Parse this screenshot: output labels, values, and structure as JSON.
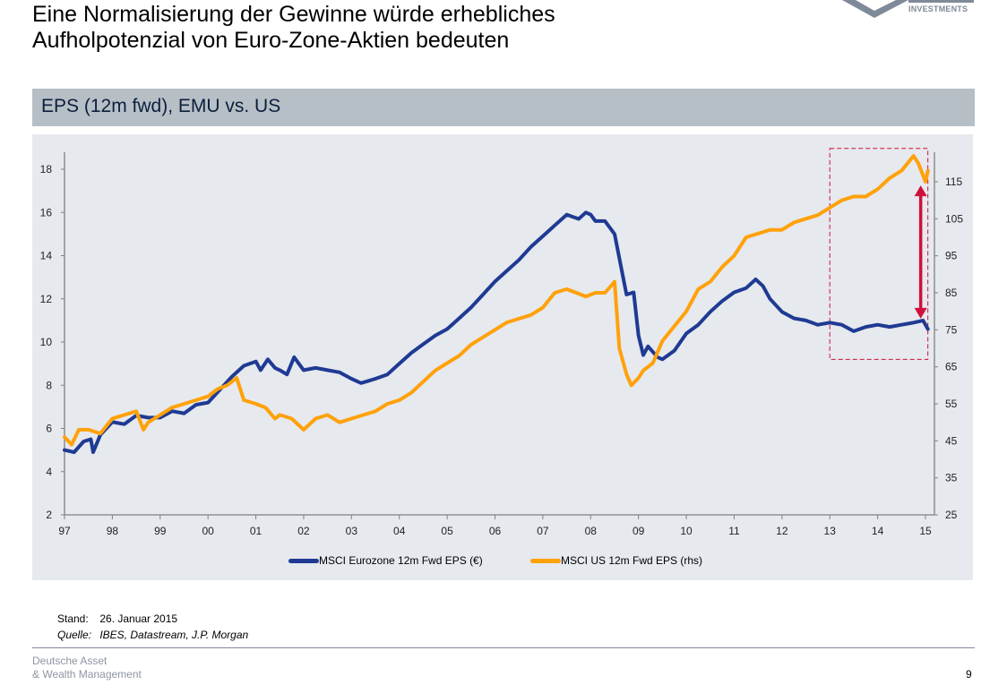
{
  "page": {
    "title_line1": "Eine Normalisierung der Gewinne würde erhebliches",
    "title_line2": "Aufholpotenzial von Euro-Zone-Aktien bedeuten",
    "logo_text": "INVESTMENTS",
    "section_header": "EPS (12m fwd), EMU vs. US",
    "stand_label": "Stand:",
    "stand_value": "26. Januar 2015",
    "quelle_label": "Quelle:",
    "quelle_value": "IBES, Datastream, J.P. Morgan",
    "brand_line1": "Deutsche Asset",
    "brand_line2": "& Wealth Management",
    "page_number": "9"
  },
  "colors": {
    "eurozone": "#1f3a93",
    "us": "#ffa10a",
    "highlight": "#d0103a",
    "panel": "#e6e9ee",
    "header": "#b7bfc6"
  },
  "chart_data": {
    "type": "line",
    "title": "EPS (12m fwd), EMU vs. US",
    "xlabel": "",
    "ylabel_left": "",
    "ylabel_right": "",
    "x_ticks": [
      "97",
      "98",
      "99",
      "00",
      "01",
      "02",
      "03",
      "04",
      "05",
      "06",
      "07",
      "08",
      "09",
      "10",
      "11",
      "12",
      "13",
      "14",
      "15"
    ],
    "x_range": [
      1997,
      2015.1
    ],
    "y_left": {
      "ticks": [
        2,
        4,
        6,
        8,
        10,
        12,
        14,
        16,
        18
      ],
      "range": [
        2,
        18.7
      ]
    },
    "y_right": {
      "ticks": [
        25,
        35,
        45,
        55,
        65,
        75,
        85,
        95,
        105,
        115
      ],
      "range": [
        25,
        122
      ]
    },
    "legend_position": "bottom",
    "series": [
      {
        "name": "MSCI Eurozone 12m Fwd EPS (€)",
        "axis": "left",
        "x": [
          1997.0,
          1997.2,
          1997.4,
          1997.55,
          1997.6,
          1997.75,
          1998.0,
          1998.25,
          1998.5,
          1998.75,
          1999.0,
          1999.25,
          1999.5,
          1999.75,
          2000.0,
          2000.25,
          2000.5,
          2000.75,
          2001.0,
          2001.1,
          2001.25,
          2001.4,
          2001.5,
          2001.65,
          2001.8,
          2002.0,
          2002.25,
          2002.5,
          2002.75,
          2003.0,
          2003.2,
          2003.35,
          2003.5,
          2003.75,
          2004.0,
          2004.25,
          2004.5,
          2004.75,
          2005.0,
          2005.25,
          2005.5,
          2005.75,
          2006.0,
          2006.25,
          2006.5,
          2006.75,
          2007.0,
          2007.25,
          2007.5,
          2007.75,
          2007.9,
          2008.0,
          2008.1,
          2008.3,
          2008.5,
          2008.75,
          2008.9,
          2009.0,
          2009.1,
          2009.2,
          2009.4,
          2009.5,
          2009.75,
          2010.0,
          2010.25,
          2010.5,
          2010.75,
          2011.0,
          2011.25,
          2011.45,
          2011.6,
          2011.75,
          2012.0,
          2012.25,
          2012.5,
          2012.75,
          2013.0,
          2013.25,
          2013.5,
          2013.75,
          2014.0,
          2014.25,
          2014.5,
          2014.75,
          2014.95,
          2015.05
        ],
        "values": [
          5.0,
          4.9,
          5.4,
          5.5,
          4.9,
          5.7,
          6.3,
          6.2,
          6.6,
          6.5,
          6.5,
          6.8,
          6.7,
          7.1,
          7.2,
          7.8,
          8.4,
          8.9,
          9.1,
          8.7,
          9.2,
          8.8,
          8.7,
          8.5,
          9.3,
          8.7,
          8.8,
          8.7,
          8.6,
          8.3,
          8.1,
          8.2,
          8.3,
          8.5,
          9.0,
          9.5,
          9.9,
          10.3,
          10.6,
          11.1,
          11.6,
          12.2,
          12.8,
          13.3,
          13.8,
          14.4,
          14.9,
          15.4,
          15.9,
          15.7,
          16.0,
          15.9,
          15.6,
          15.6,
          15.0,
          12.2,
          12.3,
          10.3,
          9.4,
          9.8,
          9.3,
          9.2,
          9.6,
          10.4,
          10.8,
          11.4,
          11.9,
          12.3,
          12.5,
          12.9,
          12.6,
          12.0,
          11.4,
          11.1,
          11.0,
          10.8,
          10.9,
          10.8,
          10.5,
          10.7,
          10.8,
          10.7,
          10.8,
          10.9,
          11.0,
          10.6
        ]
      },
      {
        "name": "MSCI US 12m Fwd EPS (rhs)",
        "axis": "right",
        "x": [
          1997.0,
          1997.15,
          1997.3,
          1997.5,
          1997.75,
          1998.0,
          1998.25,
          1998.5,
          1998.65,
          1998.75,
          1999.0,
          1999.25,
          1999.5,
          1999.75,
          2000.0,
          2000.2,
          2000.4,
          2000.6,
          2000.75,
          2001.0,
          2001.2,
          2001.4,
          2001.5,
          2001.75,
          2002.0,
          2002.25,
          2002.5,
          2002.75,
          2003.0,
          2003.25,
          2003.5,
          2003.75,
          2004.0,
          2004.25,
          2004.5,
          2004.75,
          2005.0,
          2005.25,
          2005.5,
          2005.75,
          2006.0,
          2006.25,
          2006.5,
          2006.75,
          2007.0,
          2007.25,
          2007.5,
          2007.7,
          2007.9,
          2008.1,
          2008.3,
          2008.5,
          2008.6,
          2008.75,
          2008.85,
          2009.0,
          2009.1,
          2009.3,
          2009.5,
          2009.75,
          2010.0,
          2010.25,
          2010.5,
          2010.75,
          2011.0,
          2011.25,
          2011.5,
          2011.75,
          2012.0,
          2012.25,
          2012.5,
          2012.75,
          2013.0,
          2013.25,
          2013.5,
          2013.75,
          2014.0,
          2014.25,
          2014.5,
          2014.75,
          2014.85,
          2015.0,
          2015.05
        ],
        "values": [
          46,
          44,
          48,
          48,
          47,
          51,
          52,
          53,
          48,
          50,
          52,
          54,
          55,
          56,
          57,
          59,
          60,
          62,
          56,
          55,
          54,
          51,
          52,
          51,
          48,
          51,
          52,
          50,
          51,
          52,
          53,
          55,
          56,
          58,
          61,
          64,
          66,
          68,
          71,
          73,
          75,
          77,
          78,
          79,
          81,
          85,
          86,
          85,
          84,
          85,
          85,
          88,
          70,
          63,
          60,
          62,
          64,
          66,
          72,
          76,
          80,
          86,
          88,
          92,
          95,
          100,
          101,
          102,
          102,
          104,
          105,
          106,
          108,
          110,
          111,
          111,
          113,
          116,
          118,
          122,
          120,
          115,
          118
        ]
      }
    ],
    "annotations": [
      {
        "type": "dashed-box",
        "x_range": [
          2013.0,
          2015.05
        ],
        "y_right_range": [
          67,
          124
        ]
      },
      {
        "type": "double-arrow",
        "x": 2014.9,
        "y_right_from": 78,
        "y_right_to": 114
      }
    ]
  }
}
